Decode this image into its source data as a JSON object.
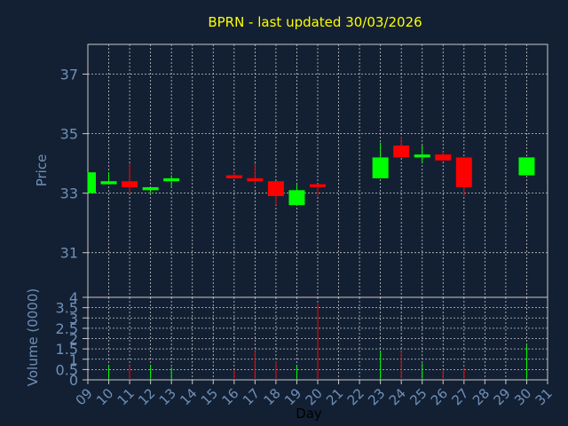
{
  "chart_data": {
    "type": "candlestick",
    "title": "BPRN - last updated 30/03/2026",
    "xlabel": "Day",
    "price_panel": {
      "ylabel": "Price",
      "ylim": [
        29.5,
        38
      ],
      "yticks": [
        31,
        33,
        35,
        37
      ],
      "grid": true
    },
    "volume_panel": {
      "ylabel": "Volume (0000)",
      "ylim": [
        0,
        4
      ],
      "yticks": [
        0,
        0.5,
        1,
        1.5,
        2,
        2.5,
        3,
        3.5,
        4
      ],
      "ytick_labels": [
        "0",
        "0.5",
        "1",
        "1.5",
        "2",
        "2.5",
        "3",
        "3.5",
        "4"
      ],
      "grid": true
    },
    "x_ticks": [
      "09",
      "10",
      "11",
      "12",
      "13",
      "14",
      "15",
      "16",
      "17",
      "18",
      "19",
      "20",
      "21",
      "22",
      "23",
      "24",
      "25",
      "26",
      "27",
      "28",
      "29",
      "30",
      "31"
    ],
    "candles": [
      {
        "day": "09",
        "open": 33.0,
        "high": 33.7,
        "low": 33.0,
        "close": 33.7
      },
      {
        "day": "10",
        "open": 33.3,
        "high": 33.7,
        "low": 33.3,
        "close": 33.4
      },
      {
        "day": "11",
        "open": 33.4,
        "high": 34.0,
        "low": 33.0,
        "close": 33.2
      },
      {
        "day": "12",
        "open": 33.1,
        "high": 33.2,
        "low": 33.0,
        "close": 33.2
      },
      {
        "day": "13",
        "open": 33.4,
        "high": 33.6,
        "low": 33.2,
        "close": 33.5
      },
      {
        "day": "16",
        "open": 33.6,
        "high": 33.7,
        "low": 33.5,
        "close": 33.5
      },
      {
        "day": "17",
        "open": 33.5,
        "high": 34.0,
        "low": 33.3,
        "close": 33.4
      },
      {
        "day": "18",
        "open": 33.4,
        "high": 33.4,
        "low": 32.6,
        "close": 32.9
      },
      {
        "day": "19",
        "open": 32.6,
        "high": 33.3,
        "low": 32.6,
        "close": 33.1
      },
      {
        "day": "20",
        "open": 33.3,
        "high": 33.3,
        "low": 32.9,
        "close": 33.2
      },
      {
        "day": "23",
        "open": 33.5,
        "high": 34.7,
        "low": 33.5,
        "close": 34.2
      },
      {
        "day": "24",
        "open": 34.6,
        "high": 34.9,
        "low": 34.2,
        "close": 34.2
      },
      {
        "day": "25",
        "open": 34.2,
        "high": 34.6,
        "low": 34.0,
        "close": 34.3
      },
      {
        "day": "26",
        "open": 34.3,
        "high": 34.4,
        "low": 34.1,
        "close": 34.1
      },
      {
        "day": "27",
        "open": 34.2,
        "high": 34.2,
        "low": 32.9,
        "close": 33.2
      },
      {
        "day": "30",
        "open": 33.6,
        "high": 34.2,
        "low": 33.6,
        "close": 34.2
      }
    ],
    "volume": [
      {
        "day": "10",
        "value": 0.7,
        "color": "green"
      },
      {
        "day": "11",
        "value": 0.7,
        "color": "red"
      },
      {
        "day": "12",
        "value": 0.7,
        "color": "green"
      },
      {
        "day": "13",
        "value": 0.6,
        "color": "green"
      },
      {
        "day": "16",
        "value": 0.5,
        "color": "red"
      },
      {
        "day": "17",
        "value": 1.4,
        "color": "red"
      },
      {
        "day": "18",
        "value": 0.9,
        "color": "red"
      },
      {
        "day": "19",
        "value": 0.7,
        "color": "green"
      },
      {
        "day": "20",
        "value": 3.7,
        "color": "red"
      },
      {
        "day": "23",
        "value": 1.4,
        "color": "green"
      },
      {
        "day": "24",
        "value": 1.4,
        "color": "red"
      },
      {
        "day": "25",
        "value": 0.8,
        "color": "green"
      },
      {
        "day": "26",
        "value": 0.5,
        "color": "red"
      },
      {
        "day": "27",
        "value": 0.6,
        "color": "red"
      },
      {
        "day": "30",
        "value": 1.7,
        "color": "green"
      }
    ],
    "colors": {
      "background": "#132033",
      "plot_area": "#132033",
      "grid": "#c8c8c8",
      "axis_text": "#6f90b8",
      "title_text": "#ffff00",
      "up": "#00ff00",
      "down": "#ff0000"
    }
  }
}
